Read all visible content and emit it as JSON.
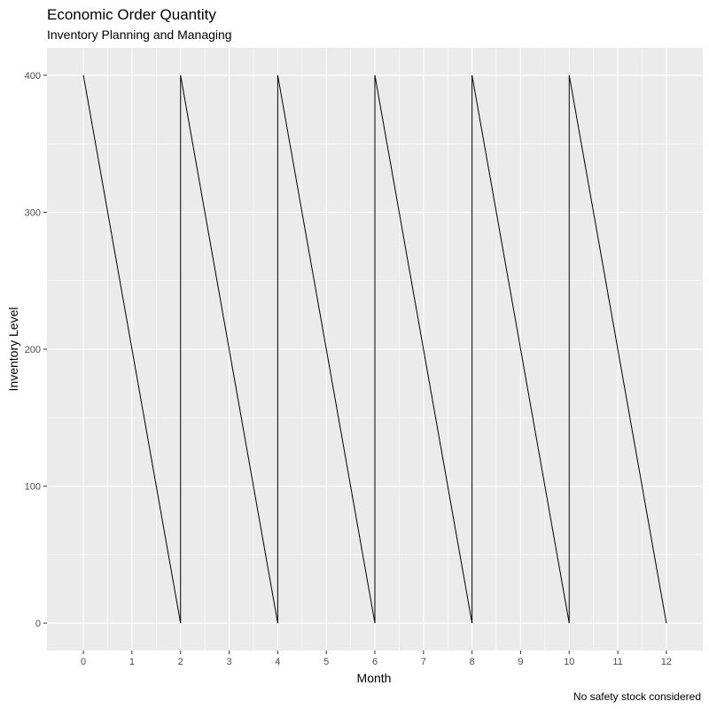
{
  "chart_data": {
    "type": "line",
    "title": "Economic Order Quantity",
    "subtitle": "Inventory Planning and Managing",
    "xlabel": "Month",
    "ylabel": "Inventory Level",
    "caption": "No safety stock considered",
    "xlim": [
      -0.75,
      12.75
    ],
    "ylim": [
      -20,
      420
    ],
    "x_ticks": [
      0,
      1,
      2,
      3,
      4,
      5,
      6,
      7,
      8,
      9,
      10,
      11,
      12
    ],
    "y_ticks": [
      0,
      100,
      200,
      300,
      400
    ],
    "grid": true,
    "series": [
      {
        "x": [
          0,
          2,
          2,
          4,
          4,
          6,
          6,
          8,
          8,
          10,
          10,
          12
        ],
        "y": [
          400,
          0,
          400,
          0,
          400,
          0,
          400,
          0,
          400,
          0,
          400,
          0
        ]
      }
    ]
  },
  "colors": {
    "panel_background": "#ebebeb",
    "grid_major": "#ffffff",
    "line": "#000000"
  }
}
